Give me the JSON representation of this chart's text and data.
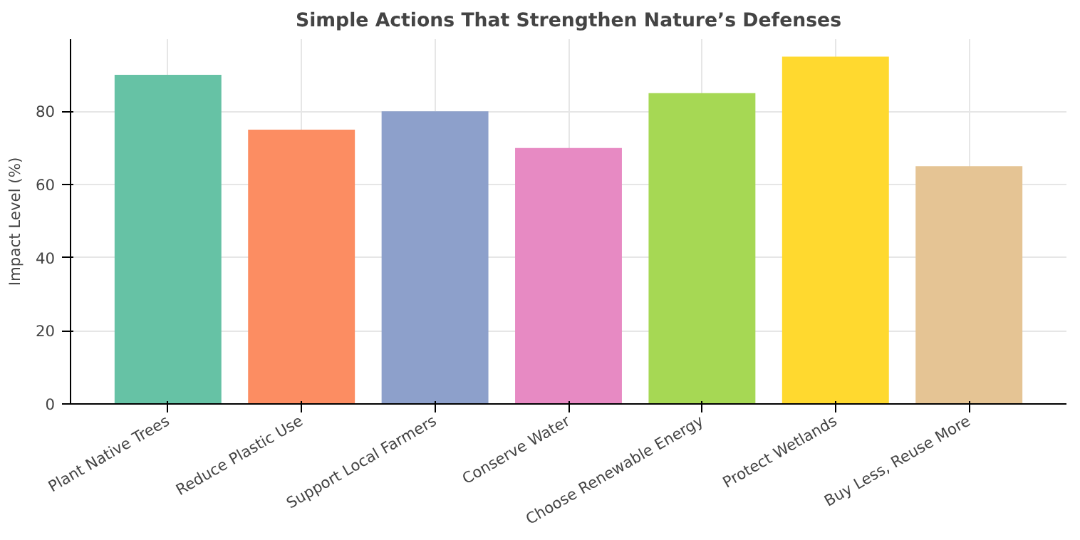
{
  "chart_data": {
    "type": "bar",
    "title": "Simple Actions That Strengthen Nature’s Defenses",
    "ylabel": "Impact Level (%)",
    "categories": [
      "Plant Native Trees",
      "Reduce Plastic Use",
      "Support Local Farmers",
      "Conserve Water",
      "Choose Renewable Energy",
      "Protect Wetlands",
      "Buy Less, Reuse More"
    ],
    "values": [
      90,
      75,
      80,
      70,
      85,
      95,
      65
    ],
    "colors": [
      "#66c2a5",
      "#fc8d62",
      "#8da0cb",
      "#e78ac3",
      "#a6d854",
      "#ffd92f",
      "#e5c494"
    ],
    "ylim": [
      0,
      99.75
    ],
    "yticks": [
      0,
      20,
      40,
      60,
      80
    ],
    "grid": true
  }
}
